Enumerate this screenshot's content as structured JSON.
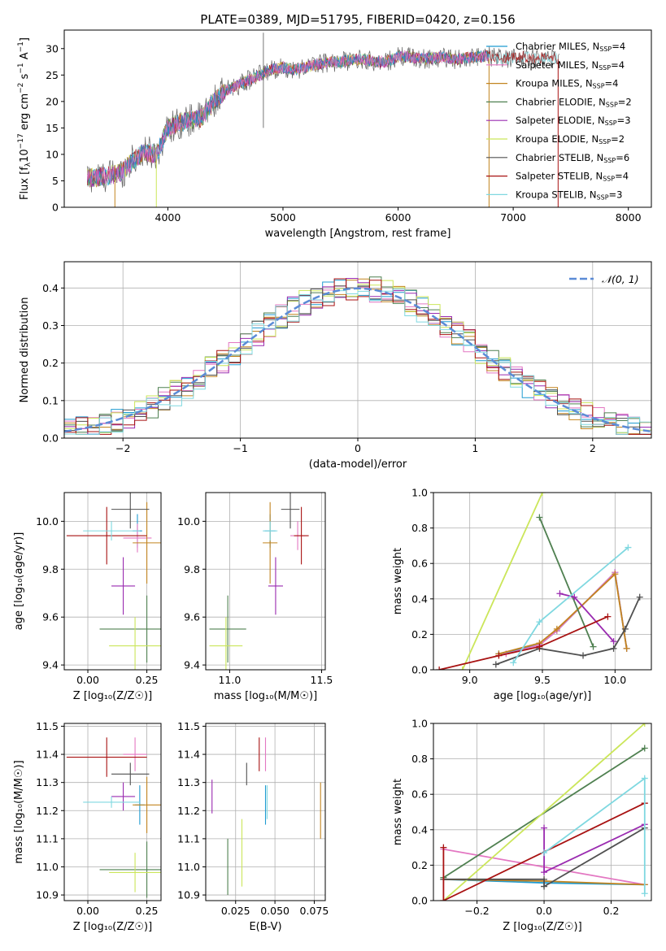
{
  "figure": {
    "title": "PLATE=0389, MJD=51795, FIBERID=0420, z=0.156"
  },
  "colors": {
    "Chabrier MILES": "#1f9bd1",
    "Salpeter MILES": "#e377c2",
    "Kroupa MILES": "#c2841f",
    "Chabrier ELODIE": "#4f8050",
    "Salpeter ELODIE": "#9a2bb0",
    "Kroupa ELODIE": "#cbe65a",
    "Chabrier STELIB": "#505050",
    "Salpeter STELIB": "#a81212",
    "Kroupa STELIB": "#7fd8e0",
    "normal": "#5b8bd6"
  },
  "chart_data": [
    {
      "id": "spectrum",
      "type": "line",
      "title": "PLATE=0389, MJD=51795, FIBERID=0420, z=0.156",
      "xlabel": "wavelength [Angstrom, rest frame]",
      "ylabel": "Flux [f_λ10^-17 erg cm^-2 s^-1 A^-1]",
      "xlim": [
        3100,
        8200
      ],
      "ylim": [
        0,
        33.5
      ],
      "xticks": [
        4000,
        5000,
        6000,
        7000,
        8000
      ],
      "yticks": [
        0,
        5,
        10,
        15,
        20,
        25,
        30
      ],
      "grid": false,
      "legend_position": "top-right",
      "legend": [
        {
          "label": "Chabrier MILES, N",
          "sub": "SSP",
          "tail": "=4",
          "color": "Chabrier MILES"
        },
        {
          "label": "Salpeter MILES, N",
          "sub": "SSP",
          "tail": "=4",
          "color": "Salpeter MILES"
        },
        {
          "label": "Kroupa MILES, N",
          "sub": "SSP",
          "tail": "=4",
          "color": "Kroupa MILES"
        },
        {
          "label": "Chabrier ELODIE, N",
          "sub": "SSP",
          "tail": "=2",
          "color": "Chabrier ELODIE"
        },
        {
          "label": "Salpeter ELODIE, N",
          "sub": "SSP",
          "tail": "=3",
          "color": "Salpeter ELODIE"
        },
        {
          "label": "Kroupa ELODIE, N",
          "sub": "SSP",
          "tail": "=2",
          "color": "Kroupa ELODIE"
        },
        {
          "label": "Chabrier STELIB, N",
          "sub": "SSP",
          "tail": "=6",
          "color": "Chabrier STELIB"
        },
        {
          "label": "Salpeter STELIB, N",
          "sub": "SSP",
          "tail": "=4",
          "color": "Salpeter STELIB"
        },
        {
          "label": "Kroupa STELIB, N",
          "sub": "SSP",
          "tail": "=3",
          "color": "Kroupa STELIB"
        }
      ],
      "continuum": [
        [
          3300,
          5.5
        ],
        [
          3450,
          5.8
        ],
        [
          3600,
          6.6
        ],
        [
          3700,
          9
        ],
        [
          3800,
          10.5
        ],
        [
          3900,
          10
        ],
        [
          4000,
          15
        ],
        [
          4100,
          16
        ],
        [
          4200,
          16.5
        ],
        [
          4300,
          17
        ],
        [
          4400,
          20
        ],
        [
          4500,
          22
        ],
        [
          4600,
          23
        ],
        [
          4700,
          24
        ],
        [
          4800,
          25
        ],
        [
          4900,
          26
        ],
        [
          5000,
          26.5
        ],
        [
          5100,
          26
        ],
        [
          5200,
          26.5
        ],
        [
          5300,
          27
        ],
        [
          5400,
          27.5
        ],
        [
          5500,
          27.5
        ],
        [
          5600,
          27.8
        ],
        [
          5700,
          28
        ],
        [
          5800,
          27.5
        ],
        [
          5900,
          27.5
        ],
        [
          6000,
          28.5
        ],
        [
          6100,
          28.5
        ],
        [
          6200,
          28
        ],
        [
          6300,
          28.2
        ],
        [
          6400,
          28.4
        ],
        [
          6500,
          28
        ],
        [
          6600,
          28.2
        ],
        [
          6700,
          28.5
        ],
        [
          6800,
          28.5
        ],
        [
          6900,
          28
        ],
        [
          7000,
          28.2
        ],
        [
          7100,
          28.5
        ],
        [
          7200,
          28
        ],
        [
          7300,
          28.4
        ],
        [
          7400,
          28.2
        ]
      ]
    },
    {
      "id": "residuals",
      "type": "histogram",
      "xlabel": "(data-model)/error",
      "ylabel": "Normed distribution",
      "xlim": [
        -2.5,
        2.5
      ],
      "ylim": [
        0,
        0.47
      ],
      "xticks": [
        -2,
        -1,
        0,
        1,
        2
      ],
      "xticklabels": [
        "−2",
        "−1",
        "0",
        "1",
        "2"
      ],
      "yticks": [
        0,
        0.1,
        0.2,
        0.3,
        0.4
      ],
      "yticklabels": [
        "0.0",
        "0.1",
        "0.2",
        "0.3",
        "0.4"
      ],
      "grid": true,
      "legend_position": "top-right",
      "legend_label": "𝒩(0, 1)",
      "bins": 50
    },
    {
      "id": "age-vs-z",
      "type": "scatter",
      "xlabel": "Z [log₁₀(Z/Z☉)]",
      "ylabel": "age  [log₁₀(age/yr)]",
      "xlim": [
        -0.1,
        0.31
      ],
      "ylim": [
        9.38,
        10.12
      ],
      "xticks": [
        0,
        0.25
      ],
      "xticklabels": [
        "0.00",
        "0.25"
      ],
      "yticks": [
        9.4,
        9.6,
        9.8,
        10.0
      ],
      "yticklabels": [
        "9.4",
        "9.6",
        "9.8",
        "10.0"
      ],
      "grid": true,
      "points": [
        {
          "s": "Chabrier MILES",
          "x": 0.21,
          "y": 9.96,
          "ex": 0.02,
          "ey": 0.07
        },
        {
          "s": "Salpeter MILES",
          "x": 0.21,
          "y": 9.93,
          "ex": 0.06,
          "ey": 0.06
        },
        {
          "s": "Kroupa MILES",
          "x": 0.25,
          "y": 9.91,
          "ex": 0.06,
          "ey": 0.17
        },
        {
          "s": "Chabrier ELODIE",
          "x": 0.25,
          "y": 9.55,
          "ex": 0.2,
          "ey": 0.14
        },
        {
          "s": "Salpeter ELODIE",
          "x": 0.15,
          "y": 9.73,
          "ex": 0.05,
          "ey": 0.12
        },
        {
          "s": "Kroupa ELODIE",
          "x": 0.2,
          "y": 9.48,
          "ex": 0.11,
          "ey": 0.12
        },
        {
          "s": "Chabrier STELIB",
          "x": 0.18,
          "y": 10.05,
          "ex": 0.08,
          "ey": 0.08
        },
        {
          "s": "Salpeter STELIB",
          "x": 0.08,
          "y": 9.94,
          "ex": 0.17,
          "ey": 0.12
        },
        {
          "s": "Kroupa STELIB",
          "x": 0.1,
          "y": 9.96,
          "ex": 0.12,
          "ey": 0.04
        }
      ]
    },
    {
      "id": "age-vs-mass",
      "type": "scatter",
      "xlabel": "mass [log₁₀(M/M☉)]",
      "ylabel": "",
      "xlim": [
        10.87,
        11.52
      ],
      "ylim": [
        9.38,
        10.12
      ],
      "xticks": [
        11.0,
        11.5
      ],
      "xticklabels": [
        "11.0",
        "11.5"
      ],
      "yticks": [
        9.4,
        9.6,
        9.8,
        10.0
      ],
      "yticklabels": [
        "9.4",
        "9.6",
        "9.8",
        "10.0"
      ],
      "grid": true,
      "points": [
        {
          "s": "Chabrier MILES",
          "x": 11.22,
          "y": 9.96,
          "ex": 0.03,
          "ey": 0.07
        },
        {
          "s": "Salpeter MILES",
          "x": 11.37,
          "y": 9.94,
          "ex": 0.04,
          "ey": 0.06
        },
        {
          "s": "Kroupa MILES",
          "x": 11.22,
          "y": 9.91,
          "ex": 0.04,
          "ey": 0.17
        },
        {
          "s": "Chabrier ELODIE",
          "x": 10.99,
          "y": 9.55,
          "ex": 0.1,
          "ey": 0.14
        },
        {
          "s": "Salpeter ELODIE",
          "x": 11.25,
          "y": 9.73,
          "ex": 0.04,
          "ey": 0.12
        },
        {
          "s": "Kroupa ELODIE",
          "x": 10.98,
          "y": 9.48,
          "ex": 0.09,
          "ey": 0.12
        },
        {
          "s": "Chabrier STELIB",
          "x": 11.33,
          "y": 10.05,
          "ex": 0.05,
          "ey": 0.08
        },
        {
          "s": "Salpeter STELIB",
          "x": 11.39,
          "y": 9.94,
          "ex": 0.04,
          "ey": 0.12
        },
        {
          "s": "Kroupa STELIB",
          "x": 11.22,
          "y": 9.96,
          "ex": 0.04,
          "ey": 0.04
        }
      ]
    },
    {
      "id": "weight-vs-age",
      "type": "line",
      "xlabel": "age  [log₁₀(age/yr)]",
      "ylabel": "mass weight",
      "xlim": [
        8.75,
        10.25
      ],
      "ylim": [
        0,
        1
      ],
      "xticks": [
        9.0,
        9.5,
        10.0
      ],
      "xticklabels": [
        "9.0",
        "9.5",
        "10.0"
      ],
      "yticks": [
        0,
        0.2,
        0.4,
        0.6,
        0.8,
        1.0
      ],
      "yticklabels": [
        "0.0",
        "0.2",
        "0.4",
        "0.6",
        "0.8",
        "1.0"
      ],
      "grid": true,
      "series": [
        {
          "s": "Chabrier MILES",
          "x": [
            9.2,
            9.48,
            9.6,
            10.0,
            10.08
          ],
          "y": [
            0.09,
            0.14,
            0.22,
            0.55,
            0.12
          ]
        },
        {
          "s": "Salpeter MILES",
          "x": [
            9.25,
            9.48,
            9.6,
            10.0,
            10.08
          ],
          "y": [
            0.09,
            0.14,
            0.22,
            0.55,
            0.12
          ]
        },
        {
          "s": "Kroupa MILES",
          "x": [
            9.2,
            9.48,
            9.6,
            10.0,
            10.08
          ],
          "y": [
            0.09,
            0.15,
            0.23,
            0.54,
            0.12
          ]
        },
        {
          "s": "Chabrier ELODIE",
          "x": [
            9.48,
            9.85
          ],
          "y": [
            0.86,
            0.13
          ]
        },
        {
          "s": "Salpeter ELODIE",
          "x": [
            9.62,
            9.72,
            9.99
          ],
          "y": [
            0.43,
            0.41,
            0.16
          ]
        },
        {
          "s": "Kroupa ELODIE",
          "x": [
            8.95,
            9.5
          ],
          "y": [
            0.0,
            1.0
          ]
        },
        {
          "s": "Chabrier STELIB",
          "x": [
            9.18,
            9.48,
            9.78,
            9.99,
            10.07,
            10.17
          ],
          "y": [
            0.03,
            0.12,
            0.08,
            0.12,
            0.23,
            0.41
          ]
        },
        {
          "s": "Salpeter STELIB",
          "x": [
            8.79,
            9.2,
            9.48,
            9.95
          ],
          "y": [
            0.0,
            0.08,
            0.13,
            0.3
          ]
        },
        {
          "s": "Kroupa STELIB",
          "x": [
            9.3,
            9.48,
            10.09
          ],
          "y": [
            0.04,
            0.27,
            0.69
          ]
        }
      ]
    },
    {
      "id": "mass-vs-z",
      "type": "scatter",
      "xlabel": "Z [log₁₀(Z/Z☉)]",
      "ylabel": "mass [log₁₀(M/M☉)]",
      "xlim": [
        -0.1,
        0.31
      ],
      "ylim": [
        10.88,
        11.51
      ],
      "xticks": [
        0,
        0.25
      ],
      "xticklabels": [
        "0.00",
        "0.25"
      ],
      "yticks": [
        10.9,
        11.0,
        11.1,
        11.2,
        11.3,
        11.4,
        11.5
      ],
      "yticklabels": [
        "10.9",
        "11.0",
        "11.1",
        "11.2",
        "11.3",
        "11.4",
        "11.5"
      ],
      "grid": true,
      "points": [
        {
          "s": "Chabrier MILES",
          "x": 0.22,
          "y": 11.22,
          "ex": 0.02,
          "ey": 0.07
        },
        {
          "s": "Salpeter MILES",
          "x": 0.2,
          "y": 11.4,
          "ex": 0.05,
          "ey": 0.06
        },
        {
          "s": "Kroupa MILES",
          "x": 0.25,
          "y": 11.22,
          "ex": 0.06,
          "ey": 0.1
        },
        {
          "s": "Chabrier ELODIE",
          "x": 0.25,
          "y": 10.99,
          "ex": 0.2,
          "ey": 0.1
        },
        {
          "s": "Salpeter ELODIE",
          "x": 0.15,
          "y": 11.25,
          "ex": 0.05,
          "ey": 0.05
        },
        {
          "s": "Kroupa ELODIE",
          "x": 0.2,
          "y": 10.98,
          "ex": 0.11,
          "ey": 0.07
        },
        {
          "s": "Chabrier STELIB",
          "x": 0.18,
          "y": 11.33,
          "ex": 0.08,
          "ey": 0.04
        },
        {
          "s": "Salpeter STELIB",
          "x": 0.08,
          "y": 11.39,
          "ex": 0.17,
          "ey": 0.07
        },
        {
          "s": "Kroupa STELIB",
          "x": 0.1,
          "y": 11.23,
          "ex": 0.12,
          "ey": 0.02
        }
      ]
    },
    {
      "id": "mass-vs-ebv",
      "type": "scatter",
      "xlabel": "E(B-V)",
      "ylabel": "",
      "xlim": [
        0.006,
        0.082
      ],
      "ylim": [
        10.88,
        11.51
      ],
      "xticks": [
        0.025,
        0.05,
        0.075
      ],
      "xticklabels": [
        "0.025",
        "0.050",
        "0.075"
      ],
      "yticks": [
        10.9,
        11.0,
        11.1,
        11.2,
        11.3,
        11.4,
        11.5
      ],
      "yticklabels": [
        "10.9",
        "11.0",
        "11.1",
        "11.2",
        "11.3",
        "11.4",
        "11.5"
      ],
      "grid": true,
      "points": [
        {
          "s": "Chabrier MILES",
          "x": 0.044,
          "y": 11.22,
          "ex": 0,
          "ey": 0.07
        },
        {
          "s": "Salpeter MILES",
          "x": 0.044,
          "y": 11.4,
          "ex": 0,
          "ey": 0.06
        },
        {
          "s": "Kroupa MILES",
          "x": 0.079,
          "y": 11.2,
          "ex": 0,
          "ey": 0.1
        },
        {
          "s": "Chabrier ELODIE",
          "x": 0.02,
          "y": 11.0,
          "ex": 0,
          "ey": 0.1
        },
        {
          "s": "Salpeter ELODIE",
          "x": 0.01,
          "y": 11.25,
          "ex": 0,
          "ey": 0.06
        },
        {
          "s": "Kroupa ELODIE",
          "x": 0.029,
          "y": 11.05,
          "ex": 0,
          "ey": 0.12
        },
        {
          "s": "Chabrier STELIB",
          "x": 0.032,
          "y": 11.33,
          "ex": 0,
          "ey": 0.04
        },
        {
          "s": "Salpeter STELIB",
          "x": 0.04,
          "y": 11.4,
          "ex": 0,
          "ey": 0.06
        },
        {
          "s": "Kroupa STELIB",
          "x": 0.045,
          "y": 11.23,
          "ex": 0,
          "ey": 0.06
        }
      ]
    },
    {
      "id": "weight-vs-z",
      "type": "line",
      "xlabel": "Z [log₁₀(Z/Z☉)]",
      "ylabel": "mass weight",
      "xlim": [
        -0.33,
        0.32
      ],
      "ylim": [
        0,
        1
      ],
      "xticks": [
        -0.2,
        0,
        0.2
      ],
      "xticklabels": [
        "−0.2",
        "0.0",
        "0.2"
      ],
      "yticks": [
        0,
        0.2,
        0.4,
        0.6,
        0.8,
        1.0
      ],
      "yticklabels": [
        "0.0",
        "0.2",
        "0.4",
        "0.6",
        "0.8",
        "1.0"
      ],
      "grid": true,
      "series": [
        {
          "s": "Chabrier MILES",
          "x": [
            -0.3,
            0.0,
            0.3
          ],
          "y": [
            0.12,
            0.1,
            0.09
          ]
        },
        {
          "s": "Salpeter MILES",
          "x": [
            -0.3,
            0.0,
            0.3
          ],
          "y": [
            0.29,
            0.19,
            0.09
          ]
        },
        {
          "s": "Kroupa MILES",
          "x": [
            -0.3,
            0.0,
            0.3
          ],
          "y": [
            0.12,
            0.11,
            0.09
          ]
        },
        {
          "s": "Chabrier ELODIE",
          "x": [
            -0.3,
            0.3
          ],
          "y": [
            0.13,
            0.86
          ]
        },
        {
          "s": "Salpeter ELODIE",
          "x": [
            0.0,
            0.0,
            0.3
          ],
          "y": [
            0.41,
            0.16,
            0.43
          ]
        },
        {
          "s": "Kroupa ELODIE",
          "x": [
            -0.3,
            0.3
          ],
          "y": [
            0.0,
            1.0
          ]
        },
        {
          "s": "Chabrier STELIB",
          "x": [
            -0.3,
            0.0,
            0.0,
            0.3
          ],
          "y": [
            0.12,
            0.12,
            0.08,
            0.41
          ]
        },
        {
          "s": "Salpeter STELIB",
          "x": [
            -0.3,
            -0.3,
            0.3,
            0.3
          ],
          "y": [
            0.3,
            0.0,
            0.55,
            0.55
          ]
        },
        {
          "s": "Kroupa STELIB",
          "x": [
            0.0,
            0.3,
            0.3
          ],
          "y": [
            0.27,
            0.69,
            0.04
          ]
        }
      ]
    }
  ]
}
